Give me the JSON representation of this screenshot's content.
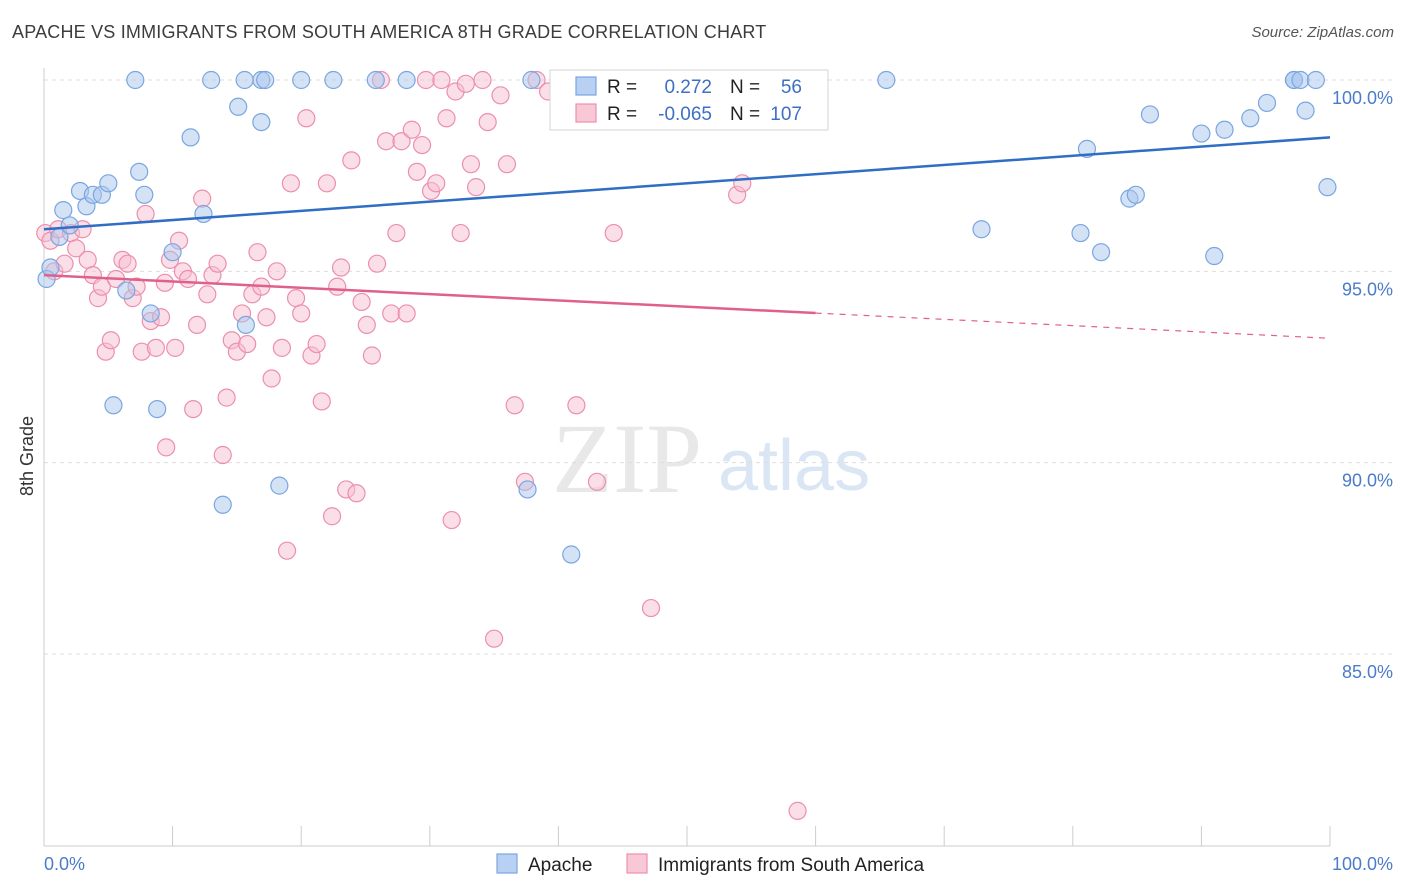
{
  "header": {
    "title": "APACHE VS IMMIGRANTS FROM SOUTH AMERICA 8TH GRADE CORRELATION CHART",
    "source": "Source: ZipAtlas.com"
  },
  "watermark": {
    "zip": "ZIP",
    "atlas": "atlas"
  },
  "chart_data": {
    "type": "scatter",
    "title": "APACHE VS IMMIGRANTS FROM SOUTH AMERICA 8TH GRADE CORRELATION CHART",
    "xlabel": "",
    "ylabel": "8th Grade",
    "xlim": [
      0,
      100
    ],
    "ylim": [
      80.5,
      101
    ],
    "x_tick_labels": {
      "left": "0.0%",
      "right": "100.0%"
    },
    "y_ticks": [
      {
        "value": 100,
        "label": "100.0%"
      },
      {
        "value": 95,
        "label": "95.0%"
      },
      {
        "value": 90,
        "label": "90.0%"
      },
      {
        "value": 85,
        "label": "85.0%"
      }
    ],
    "grid": true,
    "legend_position": "top-center",
    "stats": [
      {
        "r_label": "R =",
        "r_value": "0.272",
        "n_label": "N =",
        "n_value": "56"
      },
      {
        "r_label": "R =",
        "r_value": "-0.065",
        "n_label": "N =",
        "n_value": "107"
      }
    ],
    "series": [
      {
        "name": "Apache",
        "color": "#7aa6e0",
        "fill": "#a9c6ee",
        "line_color": "#2f6ec4",
        "trend": {
          "x0": 0,
          "y0": 96.1,
          "x1": 100,
          "y1": 98.5
        },
        "points": [
          [
            0.2,
            94.8
          ],
          [
            0.5,
            95.1
          ],
          [
            1.2,
            95.9
          ],
          [
            1.5,
            96.6
          ],
          [
            2.0,
            96.2
          ],
          [
            2.8,
            97.1
          ],
          [
            3.3,
            96.7
          ],
          [
            3.8,
            97.0
          ],
          [
            4.5,
            97.0
          ],
          [
            5.0,
            97.3
          ],
          [
            7.4,
            97.6
          ],
          [
            7.8,
            97.0
          ],
          [
            6.4,
            94.5
          ],
          [
            5.4,
            91.5
          ],
          [
            8.3,
            93.9
          ],
          [
            8.8,
            91.4
          ],
          [
            10.0,
            95.5
          ],
          [
            11.4,
            98.5
          ],
          [
            12.4,
            96.5
          ],
          [
            13.9,
            88.9
          ],
          [
            15.1,
            99.3
          ],
          [
            16.9,
            98.9
          ],
          [
            15.7,
            93.6
          ],
          [
            18.3,
            89.4
          ],
          [
            7.1,
            100
          ],
          [
            13.0,
            100
          ],
          [
            15.6,
            100
          ],
          [
            16.9,
            100
          ],
          [
            17.2,
            100
          ],
          [
            20.0,
            100
          ],
          [
            22.5,
            100
          ],
          [
            25.8,
            100
          ],
          [
            28.2,
            100
          ],
          [
            37.6,
            89.3
          ],
          [
            37.9,
            100
          ],
          [
            41.0,
            87.6
          ],
          [
            58.5,
            100
          ],
          [
            65.5,
            100
          ],
          [
            72.9,
            96.1
          ],
          [
            81.1,
            98.2
          ],
          [
            80.6,
            96.0
          ],
          [
            82.2,
            95.5
          ],
          [
            84.4,
            96.9
          ],
          [
            84.9,
            97.0
          ],
          [
            86.0,
            99.1
          ],
          [
            90.0,
            98.6
          ],
          [
            91.0,
            95.4
          ],
          [
            91.8,
            98.7
          ],
          [
            93.8,
            99.0
          ],
          [
            97.2,
            100
          ],
          [
            97.2,
            100
          ],
          [
            97.7,
            100
          ],
          [
            95.1,
            99.4
          ],
          [
            98.9,
            100
          ],
          [
            98.1,
            99.2
          ],
          [
            99.8,
            97.2
          ]
        ]
      },
      {
        "name": "Immigrants from South America",
        "color": "#ec8fac",
        "fill": "#f7bfd1",
        "line_color": "#e0608c",
        "trend": {
          "x0": 0,
          "y0": 94.9,
          "x1": 100,
          "y1": 93.25,
          "solid_until": 60
        },
        "points": [
          [
            0.1,
            96.0
          ],
          [
            0.5,
            95.8
          ],
          [
            0.8,
            95.0
          ],
          [
            1.1,
            96.1
          ],
          [
            1.6,
            95.2
          ],
          [
            2.1,
            96.0
          ],
          [
            2.5,
            95.6
          ],
          [
            3.0,
            96.1
          ],
          [
            3.4,
            95.3
          ],
          [
            3.8,
            94.9
          ],
          [
            4.2,
            94.3
          ],
          [
            4.5,
            94.6
          ],
          [
            4.8,
            92.9
          ],
          [
            5.2,
            93.2
          ],
          [
            5.6,
            94.8
          ],
          [
            6.1,
            95.3
          ],
          [
            6.5,
            95.2
          ],
          [
            6.9,
            94.3
          ],
          [
            7.2,
            94.6
          ],
          [
            7.6,
            92.9
          ],
          [
            7.9,
            96.5
          ],
          [
            8.3,
            93.7
          ],
          [
            8.7,
            93.0
          ],
          [
            9.1,
            93.8
          ],
          [
            9.5,
            90.4
          ],
          [
            9.8,
            95.3
          ],
          [
            10.2,
            93.0
          ],
          [
            10.5,
            95.8
          ],
          [
            10.8,
            95.0
          ],
          [
            11.2,
            94.8
          ],
          [
            11.6,
            91.4
          ],
          [
            11.9,
            93.6
          ],
          [
            12.3,
            96.9
          ],
          [
            12.7,
            94.4
          ],
          [
            13.1,
            94.9
          ],
          [
            13.5,
            95.2
          ],
          [
            13.9,
            90.2
          ],
          [
            14.2,
            91.7
          ],
          [
            14.6,
            93.2
          ],
          [
            15.0,
            92.9
          ],
          [
            15.4,
            93.9
          ],
          [
            15.8,
            93.1
          ],
          [
            16.2,
            94.4
          ],
          [
            16.6,
            95.5
          ],
          [
            16.9,
            94.6
          ],
          [
            17.3,
            93.8
          ],
          [
            17.7,
            92.2
          ],
          [
            18.1,
            95.0
          ],
          [
            18.5,
            93.0
          ],
          [
            18.9,
            87.7
          ],
          [
            19.2,
            97.3
          ],
          [
            19.6,
            94.3
          ],
          [
            20.0,
            93.9
          ],
          [
            20.4,
            99.0
          ],
          [
            20.8,
            92.8
          ],
          [
            21.2,
            93.1
          ],
          [
            21.6,
            91.6
          ],
          [
            22.0,
            97.3
          ],
          [
            22.4,
            88.6
          ],
          [
            22.8,
            94.6
          ],
          [
            23.1,
            95.1
          ],
          [
            23.5,
            89.3
          ],
          [
            23.9,
            97.9
          ],
          [
            24.3,
            89.2
          ],
          [
            24.7,
            94.2
          ],
          [
            25.1,
            93.6
          ],
          [
            25.5,
            92.8
          ],
          [
            25.9,
            95.2
          ],
          [
            26.2,
            100
          ],
          [
            26.6,
            98.4
          ],
          [
            27.0,
            93.9
          ],
          [
            27.4,
            96.0
          ],
          [
            27.8,
            98.4
          ],
          [
            28.2,
            93.9
          ],
          [
            28.6,
            98.7
          ],
          [
            29.0,
            97.6
          ],
          [
            29.4,
            98.3
          ],
          [
            29.7,
            100
          ],
          [
            30.1,
            97.1
          ],
          [
            30.5,
            97.3
          ],
          [
            30.9,
            100
          ],
          [
            31.3,
            99.0
          ],
          [
            31.7,
            88.5
          ],
          [
            32.0,
            99.7
          ],
          [
            32.4,
            96.0
          ],
          [
            32.8,
            99.9
          ],
          [
            33.2,
            97.8
          ],
          [
            33.6,
            97.2
          ],
          [
            34.1,
            100
          ],
          [
            34.5,
            98.9
          ],
          [
            35.0,
            85.4
          ],
          [
            35.5,
            99.6
          ],
          [
            36.0,
            97.8
          ],
          [
            36.6,
            91.5
          ],
          [
            37.4,
            89.5
          ],
          [
            38.3,
            100
          ],
          [
            39.2,
            99.7
          ],
          [
            40.1,
            99.8
          ],
          [
            41.4,
            91.5
          ],
          [
            43.0,
            89.5
          ],
          [
            44.3,
            96.0
          ],
          [
            47.2,
            86.2
          ],
          [
            53.9,
            97.0
          ],
          [
            54.3,
            97.3
          ],
          [
            58.6,
            80.9
          ],
          [
            40.8,
            100
          ],
          [
            9.4,
            94.7
          ]
        ]
      }
    ]
  },
  "legend_bottom": [
    "Apache",
    "Immigrants from South America"
  ]
}
